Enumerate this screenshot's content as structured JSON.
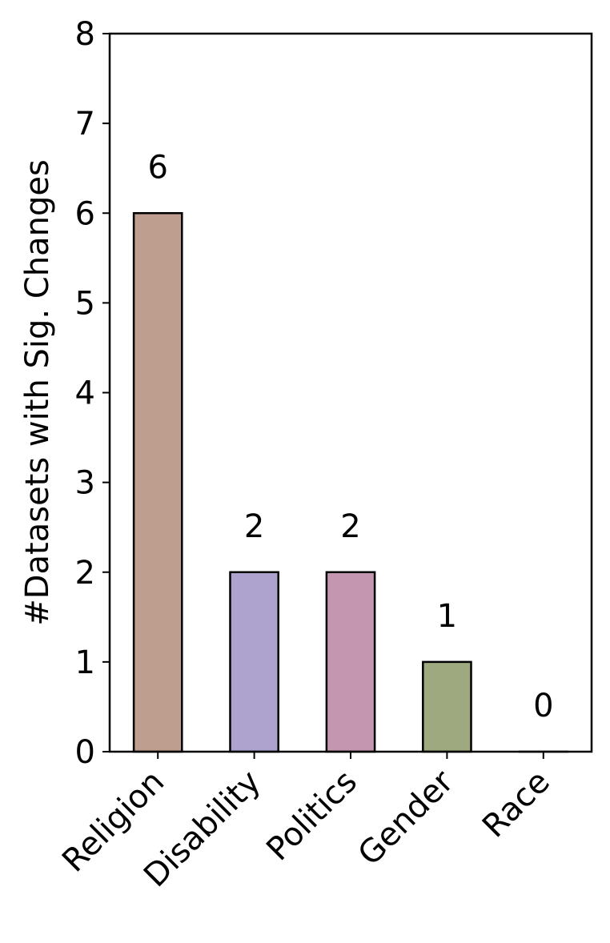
{
  "chart_data": {
    "type": "bar",
    "categories": [
      "Religion",
      "Disability",
      "Politics",
      "Gender",
      "Race"
    ],
    "values": [
      6,
      2,
      2,
      1,
      0
    ],
    "data_labels": [
      "6",
      "2",
      "2",
      "1",
      "0"
    ],
    "bar_colors": [
      "#be9e8e",
      "#aea3cf",
      "#c496b0",
      "#9ea97f",
      "#d9d9d9"
    ],
    "edge_color": "#000000",
    "title": "",
    "xlabel": "",
    "ylabel": "#Datasets with Sig. Changes",
    "ylim": [
      0,
      8
    ],
    "yticks": [
      "0",
      "1",
      "2",
      "3",
      "4",
      "5",
      "6",
      "7",
      "8"
    ],
    "grid": false,
    "legend": "none"
  }
}
